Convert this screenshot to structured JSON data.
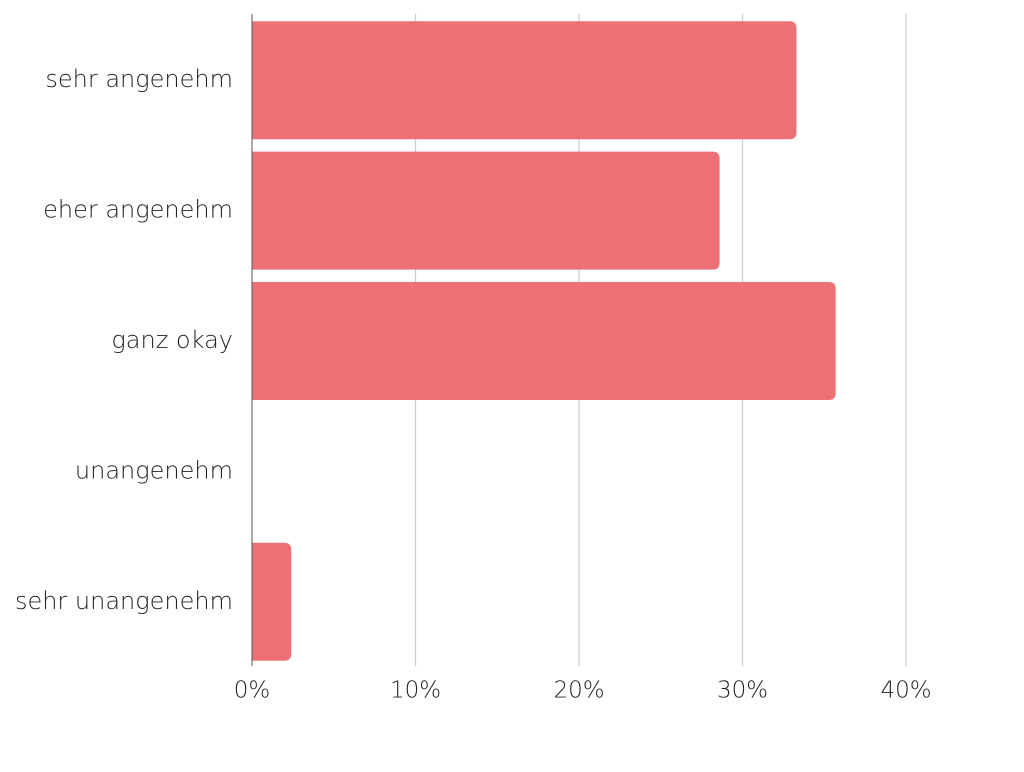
{
  "chart_data": {
    "type": "bar",
    "orientation": "horizontal",
    "categories": [
      "sehr angenehm",
      "eher angenehm",
      "ganz okay",
      "unangenehm",
      "sehr unangenehm"
    ],
    "series": [
      {
        "values": [
          33.3,
          28.6,
          35.7,
          0,
          2.4
        ]
      }
    ],
    "x_ticks": [
      "0%",
      "10%",
      "20%",
      "30%",
      "40%"
    ],
    "x_tick_values": [
      0,
      10,
      20,
      30,
      40
    ],
    "xlim": [
      0,
      40
    ],
    "grid": true,
    "legend": "none",
    "bar_color": "#ED7077",
    "grid_color": "#cccccc",
    "axis_color": "#555555"
  }
}
